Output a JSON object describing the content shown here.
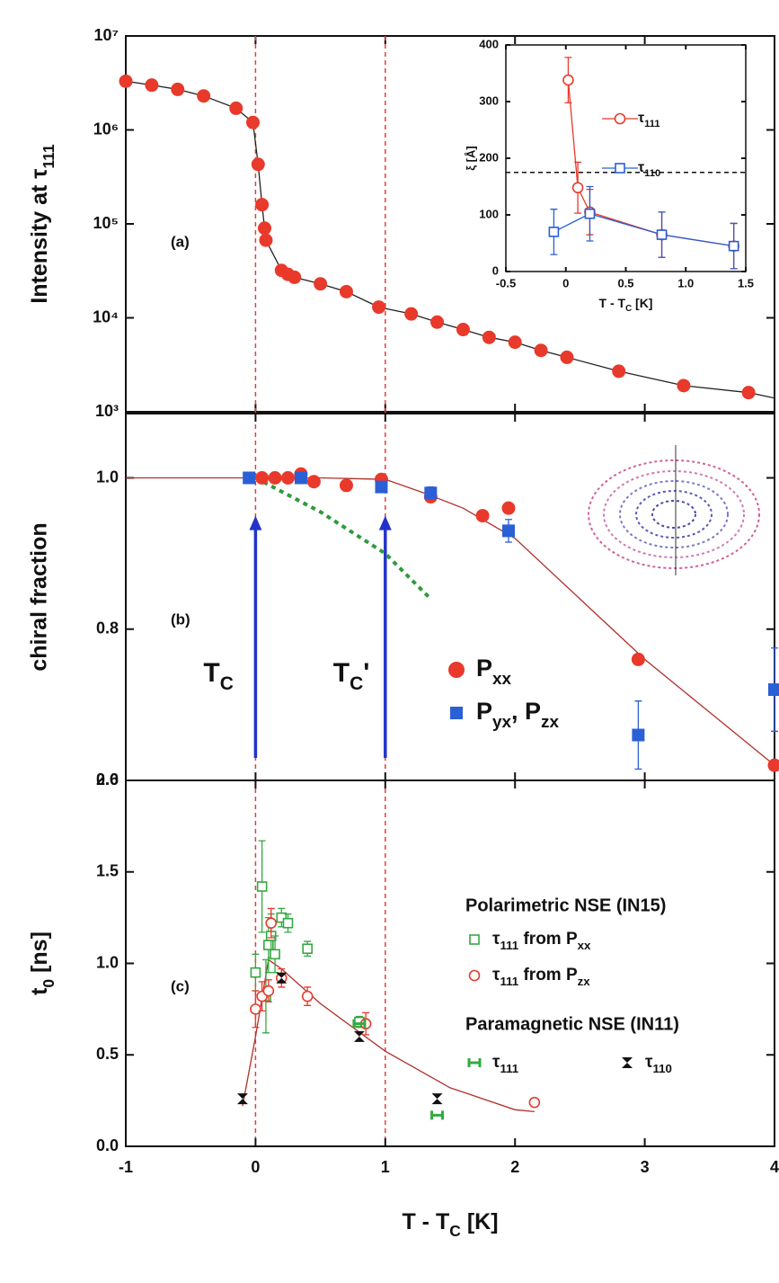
{
  "chart_data": [
    {
      "type": "scatter",
      "panel_label": "(a)",
      "ylabel": [
        "Intensity at τ",
        "111"
      ],
      "yscale": "log",
      "ylim": [
        1000,
        10000000
      ],
      "yticks": [
        {
          "value": 1000,
          "label": "10³"
        },
        {
          "value": 10000,
          "label": "10⁴"
        },
        {
          "value": 100000,
          "label": "10⁵"
        },
        {
          "value": 1000000,
          "label": "10⁶"
        },
        {
          "value": 10000000,
          "label": "10⁷"
        }
      ],
      "vlines": [
        0,
        1
      ],
      "series": [
        {
          "marker": "line",
          "color": "#222222",
          "x": [
            -1,
            -0.8,
            -0.6,
            -0.4,
            -0.15,
            -0.02,
            0.02,
            0.05,
            0.07,
            0.08,
            0.2,
            0.25,
            0.3,
            0.5,
            0.7,
            0.95,
            1.2,
            1.4,
            1.6,
            1.8,
            2.0,
            2.2,
            2.4,
            2.8,
            3.3,
            3.8,
            4.0
          ],
          "values": [
            3300000,
            3000000,
            2700000,
            2300000,
            1700000,
            1200000,
            430000,
            160000,
            90000,
            67000,
            32000,
            29000,
            27000,
            23000,
            19000,
            13000,
            11000,
            9000,
            7500,
            6200,
            5500,
            4500,
            3800,
            2700,
            1900,
            1600,
            1400
          ]
        },
        {
          "marker": "circle",
          "color": "#e8392b",
          "x": [
            -1,
            -0.8,
            -0.6,
            -0.4,
            -0.15,
            -0.02,
            0.02,
            0.05,
            0.07,
            0.08,
            0.2,
            0.25,
            0.3,
            0.5,
            0.7,
            0.95,
            1.2,
            1.4,
            1.6,
            1.8,
            2.0,
            2.2,
            2.4,
            2.8,
            3.3,
            3.8
          ],
          "values": [
            3300000,
            3000000,
            2700000,
            2300000,
            1700000,
            1200000,
            430000,
            160000,
            90000,
            67000,
            32000,
            29000,
            27000,
            23000,
            19000,
            13000,
            11000,
            9000,
            7500,
            6200,
            5500,
            4500,
            3800,
            2700,
            1900,
            1600
          ]
        }
      ]
    },
    {
      "type": "scatter",
      "panel_label": "(b)",
      "ylabel": "chiral fraction",
      "ylim": [
        0.6,
        1.085
      ],
      "yticks": [
        {
          "value": 0.6,
          "label": "0.6"
        },
        {
          "value": 0.8,
          "label": "0.8"
        },
        {
          "value": 1.0,
          "label": "1.0"
        }
      ],
      "annotations": [
        {
          "x": 0,
          "y": 0.95,
          "text": [
            "T",
            "C"
          ]
        },
        {
          "x": 1,
          "y": 0.95,
          "text": [
            "T",
            "C",
            "'"
          ]
        }
      ],
      "series": [
        {
          "marker": "line",
          "color": "#b0302a",
          "x": [
            -1,
            0,
            0.5,
            1.0,
            1.3,
            1.6,
            2.0,
            2.5,
            3.0,
            3.5,
            4.0
          ],
          "values": [
            1.0,
            1.0,
            1.0,
            0.998,
            0.98,
            0.96,
            0.92,
            0.84,
            0.76,
            0.69,
            0.62
          ]
        },
        {
          "marker": "line",
          "dash": true,
          "color": "#2e9a3c",
          "x": [
            0,
            0.5,
            1.0,
            1.35
          ],
          "values": [
            1.0,
            0.955,
            0.9,
            0.84
          ]
        },
        {
          "name": [
            "P",
            "xx"
          ],
          "marker": "circle",
          "color": "#e8392b",
          "x": [
            0.05,
            0.15,
            0.25,
            0.35,
            0.45,
            0.7,
            0.97,
            1.35,
            1.75,
            1.95,
            2.95,
            4.0
          ],
          "values": [
            1.0,
            1.0,
            1.0,
            1.005,
            0.995,
            0.99,
            0.998,
            0.975,
            0.95,
            0.96,
            0.76,
            0.62
          ]
        },
        {
          "name": [
            "P",
            "yx",
            ", P",
            "zx"
          ],
          "marker": "square",
          "color": "#2a5fd6",
          "x": [
            -0.05,
            0.35,
            0.97,
            1.35,
            1.95,
            2.95,
            4.0
          ],
          "values": [
            1.0,
            1.0,
            0.988,
            0.98,
            0.93,
            0.66,
            0.72
          ],
          "errors": [
            0.005,
            0.005,
            0.005,
            0.008,
            0.015,
            0.045,
            0.055
          ]
        }
      ]
    },
    {
      "type": "scatter",
      "panel_label": "(c)",
      "ylabel": [
        "t",
        "0",
        " [ns]"
      ],
      "xlabel": [
        "T - T",
        "C",
        " [K]"
      ],
      "xlim": [
        -1,
        4
      ],
      "xticks": [
        -1,
        0,
        1,
        2,
        3,
        4
      ],
      "ylim": [
        0,
        2.0
      ],
      "yticks": [
        {
          "value": 0,
          "label": "0.0"
        },
        {
          "value": 0.5,
          "label": "0.5"
        },
        {
          "value": 1.0,
          "label": "1.0"
        },
        {
          "value": 1.5,
          "label": "1.5"
        },
        {
          "value": 2.0,
          "label": "2.0"
        }
      ],
      "legend_titles": [
        "Polarimetric NSE (IN15)",
        "Paramagnetic NSE (IN11)"
      ],
      "series": [
        {
          "marker": "line",
          "color": "#b0302a",
          "x": [
            -0.1,
            0,
            0.1,
            0.2,
            0.5,
            1.0,
            1.5,
            2.0,
            2.15
          ],
          "values": [
            0.22,
            0.6,
            1.02,
            0.97,
            0.78,
            0.52,
            0.32,
            0.2,
            0.19
          ]
        },
        {
          "name": [
            "τ",
            "111",
            " from P",
            "xx"
          ],
          "marker": "open-square",
          "color": "#35a842",
          "x": [
            0.0,
            0.05,
            0.08,
            0.1,
            0.12,
            0.15,
            0.2,
            0.25,
            0.4,
            0.8
          ],
          "values": [
            0.95,
            1.42,
            0.82,
            1.1,
            1.15,
            1.05,
            1.25,
            1.22,
            1.08,
            0.68
          ],
          "errors": [
            0.1,
            0.25,
            0.2,
            0.15,
            0.12,
            0.1,
            0.05,
            0.05,
            0.04,
            0.03
          ]
        },
        {
          "name": [
            "τ",
            "111",
            " from P",
            "zx"
          ],
          "marker": "open-circle",
          "color": "#e8392b",
          "x": [
            0.0,
            0.05,
            0.1,
            0.12,
            0.2,
            0.4,
            0.85,
            2.15
          ],
          "values": [
            0.75,
            0.82,
            0.85,
            1.22,
            0.92,
            0.82,
            0.67,
            0.24
          ],
          "errors": [
            0.1,
            0.08,
            0.06,
            0.08,
            0.05,
            0.05,
            0.06,
            0.02
          ]
        },
        {
          "name": [
            "τ",
            "111"
          ],
          "marker": "h-bar",
          "color": "#35a842",
          "x": [
            0.8,
            1.4
          ],
          "values": [
            0.67,
            0.17
          ]
        },
        {
          "name": [
            "τ",
            "110"
          ],
          "marker": "bowtie",
          "color": "#111111",
          "x": [
            -0.1,
            0.2,
            0.8,
            1.4
          ],
          "values": [
            0.26,
            0.92,
            0.6,
            0.26
          ]
        }
      ]
    },
    {
      "type": "scatter",
      "ylabel": "ξ [Å]",
      "xlabel": [
        "T - T",
        "C",
        " [K]"
      ],
      "xlim": [
        -0.5,
        1.5
      ],
      "xticks": [
        {
          "value": -0.5,
          "label": "-0.5"
        },
        0,
        {
          "value": 0.5,
          "label": "0.5"
        },
        {
          "value": 1,
          "label": "1.0"
        },
        {
          "value": 1.5,
          "label": "1.5"
        }
      ],
      "ylim": [
        0,
        400
      ],
      "yticks": [
        0,
        100,
        200,
        300,
        400
      ],
      "hlines": [
        175
      ],
      "series": [
        {
          "name": [
            "τ",
            "111"
          ],
          "marker": "open-circle",
          "line": true,
          "color": "#e8392b",
          "x": [
            0.02,
            0.1,
            0.2,
            0.8,
            1.4
          ],
          "values": [
            338,
            148,
            105,
            65,
            45
          ],
          "errors": [
            40,
            45,
            40,
            40,
            40
          ]
        },
        {
          "name": [
            "τ",
            "110"
          ],
          "marker": "open-square",
          "line": true,
          "color": "#2a5fd6",
          "x": [
            -0.1,
            0.2,
            0.8,
            1.4
          ],
          "values": [
            70,
            102,
            65,
            45
          ],
          "errors": [
            40,
            48,
            40,
            40
          ]
        }
      ]
    }
  ]
}
